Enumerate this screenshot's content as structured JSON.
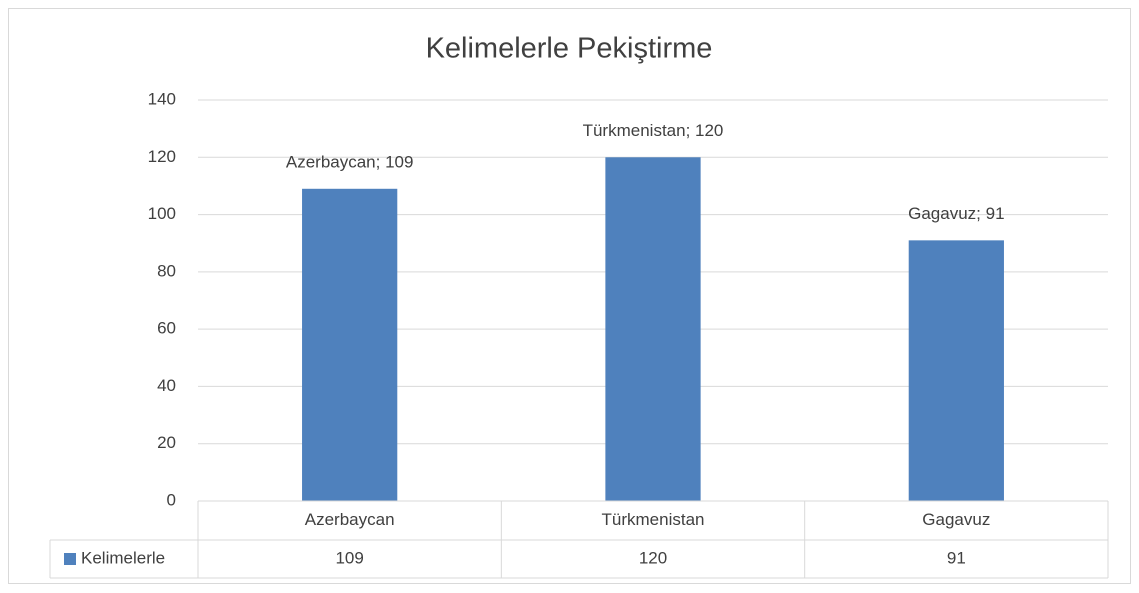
{
  "chart_data": {
    "type": "bar",
    "title": "Kelimelerle Pekiştirme",
    "categories": [
      "Azerbaycan",
      "Türkmenistan",
      "Gagavuz"
    ],
    "series": [
      {
        "name": "Kelimelerle",
        "color": "#4f81bd",
        "values": [
          109,
          120,
          91
        ],
        "value_labels": [
          "Azerbaycan; 109",
          "Türkmenistan; 120",
          "Gagavuz; 91"
        ]
      }
    ],
    "ylim": [
      0,
      140
    ],
    "yticks": [
      0,
      20,
      40,
      60,
      80,
      100,
      120,
      140
    ],
    "grid": true,
    "data_table": true
  }
}
